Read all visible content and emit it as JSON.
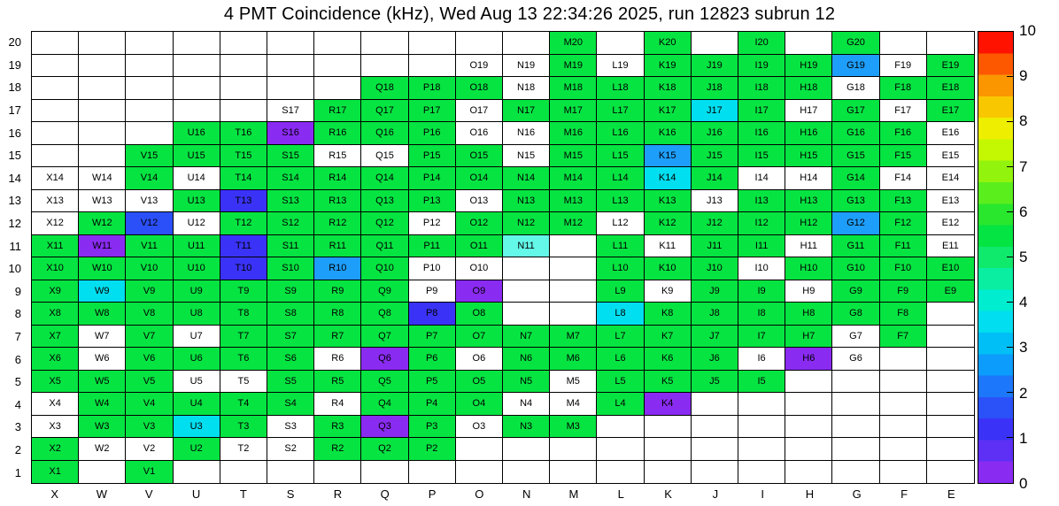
{
  "title": "4 PMT Coincidence (kHz), Wed Aug 13 22:34:26 2025, run 12823 subrun 12",
  "chart_data": {
    "type": "heatmap",
    "title": "4 PMT Coincidence (kHz), Wed Aug 13 22:34:26 2025, run 12823 subrun 12",
    "columns": [
      "X",
      "W",
      "V",
      "U",
      "T",
      "S",
      "R",
      "Q",
      "P",
      "O",
      "N",
      "M",
      "L",
      "K",
      "J",
      "I",
      "H",
      "G",
      "F",
      "E"
    ],
    "rows": [
      20,
      19,
      18,
      17,
      16,
      15,
      14,
      13,
      12,
      11,
      10,
      9,
      8,
      7,
      6,
      5,
      4,
      3,
      2,
      1
    ],
    "palette": {
      "g": {
        "hex": "#06e442",
        "approx_value": 5.0
      },
      "c": {
        "hex": "#00dff0",
        "approx_value": 3.8
      },
      "lc": {
        "hex": "#63f8e8",
        "approx_value": 4.0
      },
      "db": {
        "hex": "#1e9efb",
        "approx_value": 2.7
      },
      "b": {
        "hex": "#2b4ff8",
        "approx_value": 1.7
      },
      "nb": {
        "hex": "#3a33f7",
        "approx_value": 1.2
      },
      "p": {
        "hex": "#8a2bf2",
        "approx_value": 0.3
      },
      "w": {
        "hex": "#ffffff",
        "approx_value": 0
      }
    },
    "cells": [
      [
        "",
        "",
        "",
        "",
        "",
        "",
        "",
        "",
        "",
        "",
        "",
        "M20:g",
        "",
        "K20:g",
        "",
        "I20:g",
        "",
        "G20:g",
        "",
        ""
      ],
      [
        "",
        "",
        "",
        "",
        "",
        "",
        "",
        "",
        "",
        "O19:w",
        "N19:w",
        "M19:g",
        "L19:w",
        "K19:g",
        "J19:g",
        "I19:g",
        "H19:g",
        "G19:db",
        "F19:w",
        "E19:g"
      ],
      [
        "",
        "",
        "",
        "",
        "",
        "",
        "",
        "Q18:g",
        "P18:g",
        "O18:g",
        "N18:w",
        "M18:g",
        "L18:g",
        "K18:g",
        "J18:g",
        "I18:g",
        "H18:g",
        "G18:w",
        "F18:g",
        "E18:g"
      ],
      [
        "",
        "",
        "",
        "",
        "",
        "S17:w",
        "R17:g",
        "Q17:g",
        "P17:g",
        "O17:w",
        "N17:g",
        "M17:g",
        "L17:g",
        "K17:g",
        "J17:c",
        "I17:g",
        "H17:w",
        "G17:g",
        "F17:w",
        "E17:g"
      ],
      [
        "",
        "",
        "",
        "U16:g",
        "T16:g",
        "S16:p",
        "R16:g",
        "Q16:g",
        "P16:g",
        "O16:w",
        "N16:w",
        "M16:g",
        "L16:g",
        "K16:g",
        "J16:g",
        "I16:g",
        "H16:g",
        "G16:g",
        "F16:g",
        "E16:w"
      ],
      [
        "",
        "",
        "V15:g",
        "U15:g",
        "T15:g",
        "S15:g",
        "R15:w",
        "Q15:w",
        "P15:g",
        "O15:g",
        "N15:w",
        "M15:g",
        "L15:g",
        "K15:db",
        "J15:g",
        "I15:g",
        "H15:g",
        "G15:g",
        "F15:g",
        "E15:w"
      ],
      [
        "X14:w",
        "W14:w",
        "V14:g",
        "U14:w",
        "T14:g",
        "S14:g",
        "R14:g",
        "Q14:g",
        "P14:g",
        "O14:g",
        "N14:g",
        "M14:g",
        "L14:g",
        "K14:c",
        "J14:g",
        "I14:w",
        "H14:w",
        "G14:g",
        "F14:w",
        "E14:w"
      ],
      [
        "X13:w",
        "W13:w",
        "V13:w",
        "U13:g",
        "T13:nb",
        "S13:g",
        "R13:g",
        "Q13:g",
        "P13:g",
        "O13:w",
        "N13:g",
        "M13:g",
        "L13:g",
        "K13:g",
        "J13:w",
        "I13:g",
        "H13:g",
        "G13:g",
        "F13:g",
        "E13:w"
      ],
      [
        "X12:w",
        "W12:g",
        "V12:b",
        "U12:w",
        "T12:g",
        "S12:g",
        "R12:g",
        "Q12:g",
        "P12:w",
        "O12:g",
        "N12:g",
        "M12:g",
        "L12:w",
        "K12:g",
        "J12:g",
        "I12:g",
        "H12:g",
        "G12:db",
        "F12:g",
        "E12:w"
      ],
      [
        "X11:g",
        "W11:p",
        "V11:g",
        "U11:g",
        "T11:nb",
        "S11:g",
        "R11:g",
        "Q11:g",
        "P11:g",
        "O11:g",
        "N11:lc",
        "",
        "L11:g",
        "K11:w",
        "J11:g",
        "I11:g",
        "H11:w",
        "G11:g",
        "F11:g",
        "E11:w"
      ],
      [
        "X10:g",
        "W10:g",
        "V10:g",
        "U10:g",
        "T10:nb",
        "S10:g",
        "R10:db",
        "Q10:g",
        "P10:w",
        "O10:w",
        "",
        "",
        "L10:g",
        "K10:g",
        "J10:g",
        "I10:w",
        "H10:g",
        "G10:g",
        "F10:g",
        "E10:g"
      ],
      [
        "X9:g",
        "W9:c",
        "V9:g",
        "U9:g",
        "T9:g",
        "S9:g",
        "R9:g",
        "Q9:g",
        "P9:w",
        "O9:p",
        "",
        "",
        "L9:g",
        "K9:w",
        "J9:g",
        "I9:g",
        "H9:w",
        "G9:g",
        "F9:g",
        "E9:g"
      ],
      [
        "X8:g",
        "W8:g",
        "V8:g",
        "U8:g",
        "T8:g",
        "S8:g",
        "R8:g",
        "Q8:g",
        "P8:nb",
        "O8:g",
        "",
        "",
        "L8:c",
        "K8:g",
        "J8:g",
        "I8:g",
        "H8:g",
        "G8:g",
        "F8:g",
        ""
      ],
      [
        "X7:g",
        "W7:w",
        "V7:g",
        "U7:w",
        "T7:g",
        "S7:g",
        "R7:g",
        "Q7:g",
        "P7:g",
        "O7:g",
        "N7:g",
        "M7:g",
        "L7:g",
        "K7:g",
        "J7:g",
        "I7:g",
        "H7:g",
        "G7:w",
        "F7:g",
        ""
      ],
      [
        "X6:g",
        "W6:w",
        "V6:g",
        "U6:g",
        "T6:g",
        "S6:g",
        "R6:w",
        "Q6:p",
        "P6:g",
        "O6:w",
        "N6:g",
        "M6:g",
        "L6:g",
        "K6:g",
        "J6:g",
        "I6:w",
        "H6:p",
        "G6:w",
        "",
        ""
      ],
      [
        "X5:g",
        "W5:g",
        "V5:g",
        "U5:w",
        "T5:w",
        "S5:g",
        "R5:g",
        "Q5:g",
        "P5:g",
        "O5:g",
        "N5:g",
        "M5:w",
        "L5:g",
        "K5:g",
        "J5:g",
        "I5:g",
        "",
        "",
        "",
        ""
      ],
      [
        "X4:w",
        "W4:g",
        "V4:g",
        "U4:g",
        "T4:g",
        "S4:g",
        "R4:w",
        "Q4:g",
        "P4:g",
        "O4:g",
        "N4:w",
        "M4:w",
        "L4:g",
        "K4:p",
        "",
        "",
        "",
        "",
        "",
        ""
      ],
      [
        "X3:w",
        "W3:g",
        "V3:g",
        "U3:c",
        "T3:g",
        "S3:w",
        "R3:g",
        "Q3:p",
        "P3:g",
        "O3:w",
        "N3:g",
        "M3:g",
        "",
        "",
        "",
        "",
        "",
        "",
        "",
        ""
      ],
      [
        "X2:g",
        "W2:w",
        "V2:w",
        "U2:g",
        "T2:w",
        "S2:w",
        "R2:g",
        "Q2:g",
        "P2:g",
        "",
        "",
        "",
        "",
        "",
        "",
        "",
        "",
        "",
        "",
        ""
      ],
      [
        "X1:g",
        "",
        "V1:g",
        "",
        "",
        "",
        "",
        "",
        "",
        "",
        "",
        "",
        "",
        "",
        "",
        "",
        "",
        "",
        "",
        ""
      ]
    ],
    "colorbar": {
      "min": 0,
      "max": 10,
      "ticks": [
        0,
        1,
        2,
        3,
        4,
        5,
        6,
        7,
        8,
        9,
        10
      ],
      "colors_bottom_to_top": [
        "#8a2bf2",
        "#5e2ff4",
        "#3a33f7",
        "#2b52f8",
        "#1c77fa",
        "#0c9cfb",
        "#00bff6",
        "#00def0",
        "#00edd0",
        "#09eea1",
        "#0fe96c",
        "#04e442",
        "#29e72d",
        "#5bee1d",
        "#92f30d",
        "#c4f802",
        "#eeee00",
        "#f9c700",
        "#fb9600",
        "#fd5800",
        "#ff1300"
      ]
    },
    "legend_position": "right",
    "grid": true
  }
}
